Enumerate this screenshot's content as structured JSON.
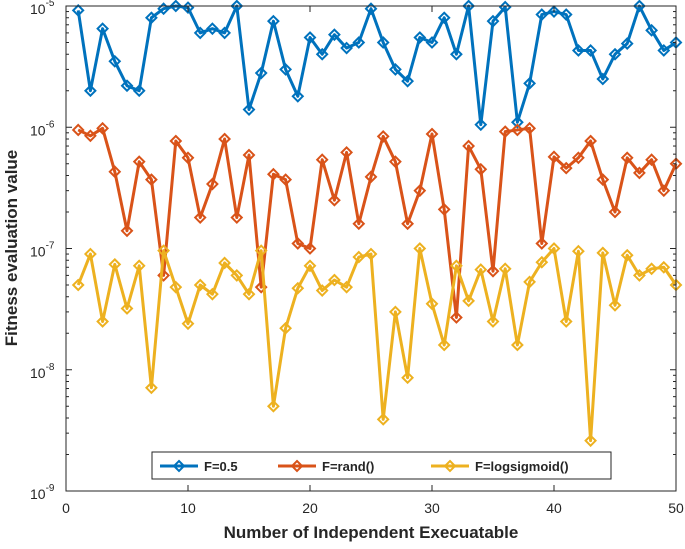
{
  "chart_data": {
    "type": "line",
    "title": "",
    "xlabel": "Number of Independent Execuatable",
    "ylabel": "Fitness evaluation value",
    "xlim": [
      0,
      50
    ],
    "ylim": [
      1e-09,
      1e-05
    ],
    "yscale": "log",
    "grid": false,
    "legend_position": "bottom-center",
    "x_ticks": [
      {
        "value": 0,
        "label": "0"
      },
      {
        "value": 10,
        "label": "10"
      },
      {
        "value": 20,
        "label": "20"
      },
      {
        "value": 30,
        "label": "30"
      },
      {
        "value": 40,
        "label": "40"
      },
      {
        "value": 50,
        "label": "50"
      }
    ],
    "y_ticks": [
      {
        "exp": -9,
        "base": "10",
        "sup": "-9"
      },
      {
        "exp": -8,
        "base": "10",
        "sup": "-8"
      },
      {
        "exp": -7,
        "base": "10",
        "sup": "-7"
      },
      {
        "exp": -6,
        "base": "10",
        "sup": "-6"
      },
      {
        "exp": -5,
        "base": "10",
        "sup": "-5"
      }
    ],
    "x": [
      1,
      2,
      3,
      4,
      5,
      6,
      7,
      8,
      9,
      10,
      11,
      12,
      13,
      14,
      15,
      16,
      17,
      18,
      19,
      20,
      21,
      22,
      23,
      24,
      25,
      26,
      27,
      28,
      29,
      30,
      31,
      32,
      33,
      34,
      35,
      36,
      37,
      38,
      39,
      40,
      41,
      42,
      43,
      44,
      45,
      46,
      47,
      48,
      49,
      50
    ],
    "series": [
      {
        "name": "F=0.5",
        "color": "#0072BD",
        "values": [
          9.2e-06,
          2e-06,
          6.5e-06,
          3.5e-06,
          2.2e-06,
          2e-06,
          8e-06,
          9.5e-06,
          1e-05,
          9.7e-06,
          6e-06,
          6.5e-06,
          6e-06,
          1e-05,
          1.4e-06,
          2.8e-06,
          7.5e-06,
          3e-06,
          1.8e-06,
          5.5e-06,
          4e-06,
          5.8e-06,
          4.5e-06,
          5e-06,
          9.5e-06,
          5e-06,
          3e-06,
          2.4e-06,
          5.5e-06,
          5e-06,
          8e-06,
          4e-06,
          1e-05,
          1.05e-06,
          7.5e-06,
          9.8e-06,
          1.1e-06,
          2.3e-06,
          8.5e-06,
          9e-06,
          8.5e-06,
          4.3e-06,
          4.3e-06,
          2.5e-06,
          4e-06,
          4.9e-06,
          1e-05,
          6.3e-06,
          4.3e-06,
          5e-06
        ]
      },
      {
        "name": "F=rand()",
        "color": "#D95319",
        "values": [
          9.5e-07,
          8.5e-07,
          9.8e-07,
          4.3e-07,
          1.4e-07,
          5.2e-07,
          3.7e-07,
          6e-08,
          7.7e-07,
          5.6e-07,
          1.8e-07,
          3.4e-07,
          8e-07,
          1.8e-07,
          5.9e-07,
          4.8e-08,
          4.1e-07,
          3.7e-07,
          1.1e-07,
          1e-07,
          5.4e-07,
          2.5e-07,
          6.2e-07,
          1.6e-07,
          3.9e-07,
          8.4e-07,
          5.2e-07,
          1.6e-07,
          3e-07,
          8.8e-07,
          2.1e-07,
          2.7e-08,
          7e-07,
          4.5e-07,
          6.5e-08,
          9.2e-07,
          9.5e-07,
          9.8e-07,
          1.1e-07,
          5.7e-07,
          4.6e-07,
          5.6e-07,
          7.7e-07,
          3.7e-07,
          2e-07,
          5.6e-07,
          4.2e-07,
          5.4e-07,
          3e-07,
          5e-07
        ]
      },
      {
        "name": "F=logsigmoid()",
        "color": "#EDB120",
        "values": [
          5e-08,
          9e-08,
          2.5e-08,
          7.4e-08,
          3.2e-08,
          7.2e-08,
          7.1e-09,
          9.6e-08,
          4.8e-08,
          2.4e-08,
          5e-08,
          4.2e-08,
          7.6e-08,
          6e-08,
          4.2e-08,
          9.6e-08,
          5e-09,
          2.2e-08,
          4.7e-08,
          7.2e-08,
          4.5e-08,
          5.5e-08,
          4.8e-08,
          8.5e-08,
          9e-08,
          3.9e-09,
          3e-08,
          8.6e-09,
          1e-07,
          3.5e-08,
          1.6e-08,
          7.2e-08,
          3.7e-08,
          6.7e-08,
          2.5e-08,
          6.8e-08,
          1.6e-08,
          5.3e-08,
          7.7e-08,
          1e-07,
          2.5e-08,
          9.5e-08,
          2.6e-09,
          9.2e-08,
          3.4e-08,
          8.8e-08,
          6e-08,
          6.8e-08,
          7e-08,
          5e-08
        ]
      }
    ]
  }
}
